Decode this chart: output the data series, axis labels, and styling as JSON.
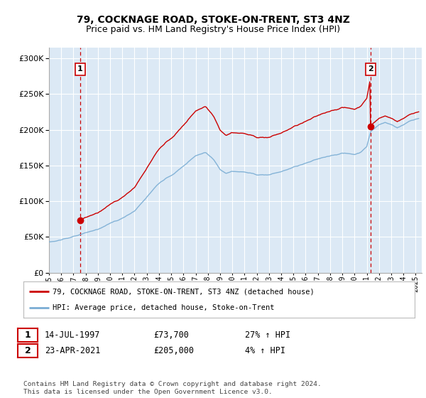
{
  "title": "79, COCKNAGE ROAD, STOKE-ON-TRENT, ST3 4NZ",
  "subtitle": "Price paid vs. HM Land Registry's House Price Index (HPI)",
  "ytick_values": [
    0,
    50000,
    100000,
    150000,
    200000,
    250000,
    300000
  ],
  "ytick_labels": [
    "£0",
    "£50K",
    "£100K",
    "£150K",
    "£200K",
    "£250K",
    "£300K"
  ],
  "ylim": [
    0,
    315000
  ],
  "xlim_start": 1995.0,
  "xlim_end": 2025.5,
  "xticks": [
    1995,
    1996,
    1997,
    1998,
    1999,
    2000,
    2001,
    2002,
    2003,
    2004,
    2005,
    2006,
    2007,
    2008,
    2009,
    2010,
    2011,
    2012,
    2013,
    2014,
    2015,
    2016,
    2017,
    2018,
    2019,
    2020,
    2021,
    2022,
    2023,
    2024,
    2025
  ],
  "sale1_x": 1997.54,
  "sale1_y": 73700,
  "sale2_x": 2021.31,
  "sale2_y": 205000,
  "red_color": "#cc0000",
  "blue_color": "#7aadd4",
  "bg_color": "#dce9f5",
  "grid_color": "#ffffff",
  "legend_label_red": "79, COCKNAGE ROAD, STOKE-ON-TRENT, ST3 4NZ (detached house)",
  "legend_label_blue": "HPI: Average price, detached house, Stoke-on-Trent",
  "annotation1_date": "14-JUL-1997",
  "annotation1_price": "£73,700",
  "annotation1_hpi": "27% ↑ HPI",
  "annotation2_date": "23-APR-2021",
  "annotation2_price": "£205,000",
  "annotation2_hpi": "4% ↑ HPI",
  "footer": "Contains HM Land Registry data © Crown copyright and database right 2024.\nThis data is licensed under the Open Government Licence v3.0.",
  "title_fontsize": 10,
  "subtitle_fontsize": 9
}
